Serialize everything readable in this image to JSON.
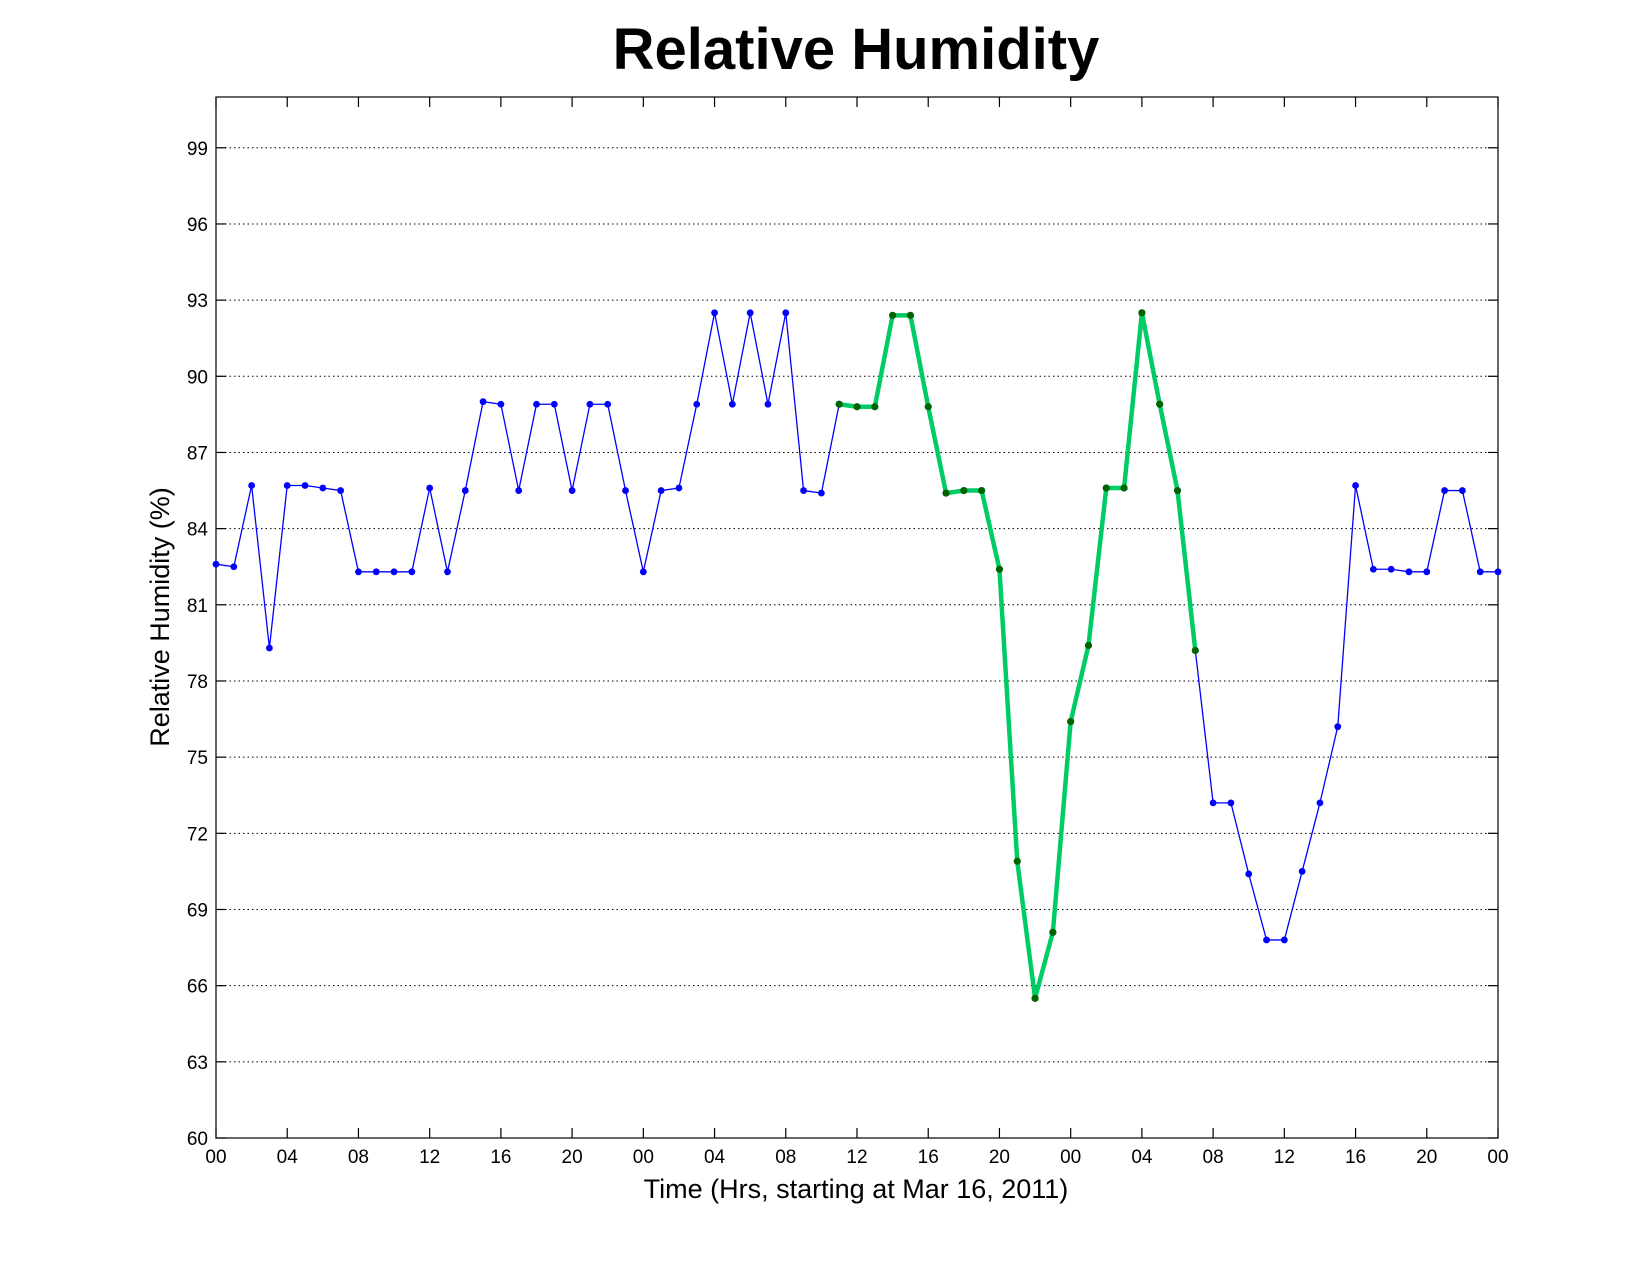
{
  "chart_data": {
    "type": "line",
    "title": "Relative Humidity",
    "xlabel": "Time (Hrs, starting at Mar 16, 2011)",
    "ylabel": "Relative Humidity (%)",
    "xlim": [
      0,
      72
    ],
    "ylim": [
      60,
      101
    ],
    "x_ticks": [
      0,
      4,
      8,
      12,
      16,
      20,
      24,
      28,
      32,
      36,
      40,
      44,
      48,
      52,
      56,
      60,
      64,
      68,
      72
    ],
    "x_tick_labels": [
      "00",
      "04",
      "08",
      "12",
      "16",
      "20",
      "00",
      "04",
      "08",
      "12",
      "16",
      "20",
      "00",
      "04",
      "08",
      "12",
      "16",
      "20",
      "00"
    ],
    "y_ticks": [
      60,
      63,
      66,
      69,
      72,
      75,
      78,
      81,
      84,
      87,
      90,
      93,
      96,
      99
    ],
    "y_tick_labels": [
      "60",
      "63",
      "66",
      "69",
      "72",
      "75",
      "78",
      "81",
      "84",
      "87",
      "90",
      "93",
      "96",
      "99"
    ],
    "grid": "horizontal dotted",
    "series": [
      {
        "color": "#0000ff",
        "x": [
          0,
          1,
          2,
          3,
          4,
          5,
          6,
          7,
          8,
          9,
          10,
          11,
          12,
          13,
          14,
          15,
          16,
          17,
          18,
          19,
          20,
          21,
          22,
          23,
          24,
          25,
          26,
          27,
          28,
          29,
          30,
          31,
          32,
          33,
          34,
          35,
          36,
          37,
          38,
          39,
          40,
          41,
          42,
          43,
          44,
          45,
          46,
          47,
          48,
          49,
          50,
          51,
          52,
          53,
          54,
          55,
          56,
          57,
          58,
          59,
          60,
          61,
          62,
          63,
          64,
          65,
          66,
          67,
          68,
          69,
          70,
          71,
          72
        ],
        "values": [
          82.6,
          82.5,
          85.7,
          79.3,
          85.7,
          85.7,
          85.6,
          85.5,
          82.3,
          82.3,
          82.3,
          82.3,
          85.6,
          82.3,
          85.5,
          89.0,
          88.9,
          85.5,
          88.9,
          88.9,
          85.5,
          88.9,
          88.9,
          85.5,
          82.3,
          85.5,
          85.6,
          88.9,
          92.5,
          88.9,
          92.5,
          88.9,
          92.5,
          85.5,
          85.4,
          88.9,
          88.8,
          88.8,
          92.4,
          92.4,
          88.8,
          85.4,
          85.5,
          85.5,
          82.4,
          70.9,
          65.5,
          68.1,
          76.4,
          79.4,
          85.6,
          85.6,
          92.5,
          88.9,
          85.5,
          79.2,
          73.2,
          73.2,
          70.4,
          67.8,
          67.8,
          70.5,
          73.2,
          76.2,
          85.7,
          82.4,
          82.4,
          82.3,
          82.3,
          85.5,
          85.5,
          82.3,
          82.3
        ]
      },
      {
        "color": "#00cc66",
        "x": [
          35,
          36,
          37,
          38,
          39,
          40,
          41,
          42,
          43,
          44,
          45,
          46,
          47,
          48,
          49,
          50,
          51,
          52,
          53,
          54,
          55
        ],
        "values": [
          88.9,
          88.8,
          88.8,
          92.4,
          92.4,
          88.8,
          85.4,
          85.5,
          85.5,
          82.4,
          70.9,
          65.5,
          68.1,
          76.4,
          79.4,
          85.6,
          85.6,
          92.5,
          88.9,
          85.5,
          79.2
        ]
      }
    ]
  }
}
